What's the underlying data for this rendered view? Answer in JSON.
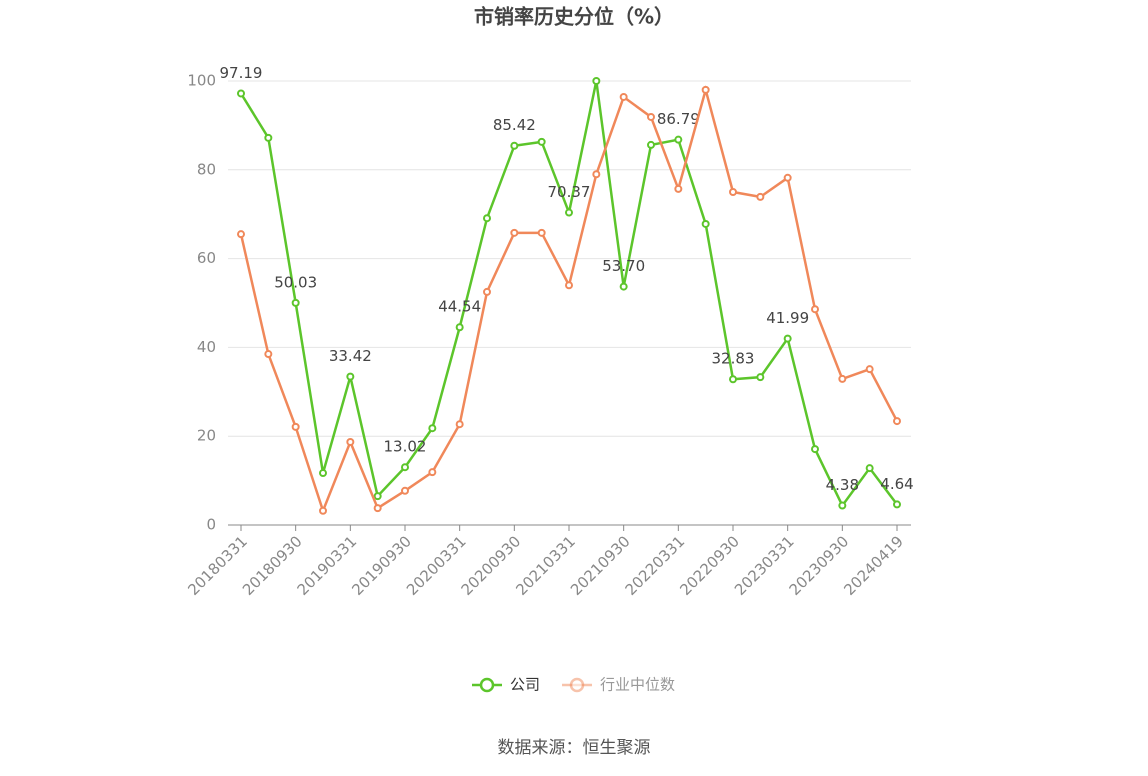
{
  "chart_data": {
    "type": "line",
    "title": "市销率历史分位（%）",
    "source": "数据来源：恒生聚源",
    "categories": [
      "20180331",
      null,
      "20180930",
      null,
      "20190331",
      null,
      "20190930",
      null,
      "20200331",
      null,
      "20200930",
      null,
      "20210331",
      null,
      "20210930",
      null,
      "20220331",
      null,
      "20220930",
      null,
      "20230331",
      null,
      "20230930",
      null,
      "20240419"
    ],
    "series": [
      {
        "name": "公司",
        "color": "#5cc52b",
        "values": [
          97.19,
          87.2,
          50.03,
          11.7,
          33.42,
          6.5,
          13.02,
          21.8,
          44.54,
          69.1,
          85.42,
          86.3,
          70.37,
          100,
          53.7,
          85.6,
          86.79,
          67.8,
          32.83,
          33.3,
          41.99,
          17.1,
          4.38,
          12.8,
          4.64
        ],
        "value_labels": [
          "97.19",
          null,
          "50.03",
          null,
          "33.42",
          null,
          "13.02",
          null,
          "44.54",
          null,
          "85.42",
          null,
          "70.37",
          null,
          "53.70",
          null,
          "86.79",
          null,
          "32.83",
          null,
          "41.99",
          null,
          "4.38",
          null,
          "4.64"
        ]
      },
      {
        "name": "行业中位数",
        "color": "#f0885a",
        "values": [
          65.5,
          38.5,
          22.1,
          3.2,
          18.7,
          3.8,
          7.7,
          11.9,
          22.7,
          52.5,
          65.8,
          65.8,
          54,
          79,
          96.4,
          91.9,
          75.7,
          98,
          75,
          73.9,
          78.2,
          48.6,
          32.9,
          35.1,
          23.4
        ]
      }
    ],
    "ylim": [
      0,
      100
    ],
    "yticks": [
      0,
      20,
      40,
      60,
      80,
      100
    ],
    "grid": true
  }
}
